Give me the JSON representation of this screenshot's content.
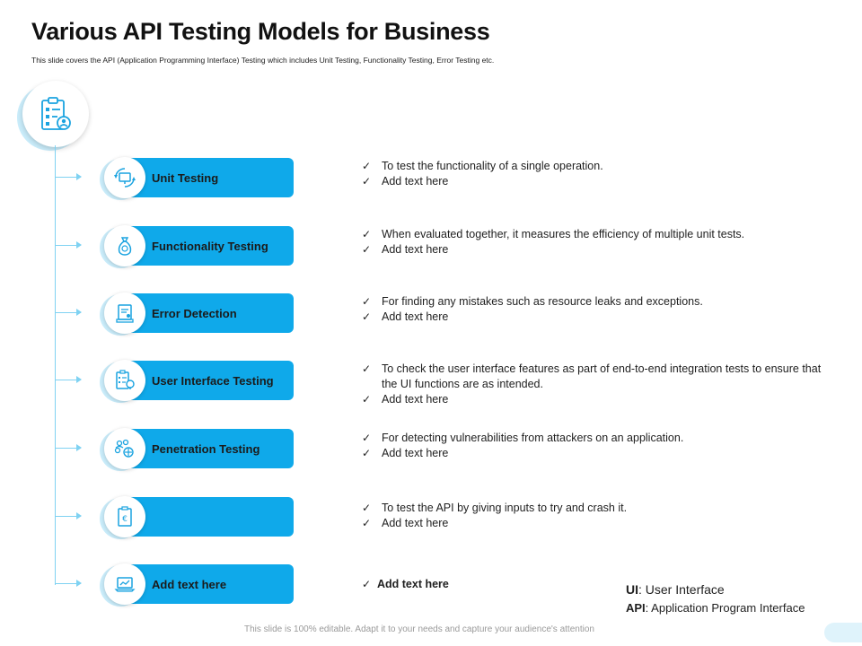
{
  "header": {
    "title": "Various API Testing Models for Business",
    "subtitle": "This slide covers the API (Application Programming Interface) Testing which includes Unit Testing, Functionality Testing, Error Testing etc."
  },
  "top_icon": "clipboard-user-icon",
  "rows": [
    {
      "label": "Unit Testing",
      "icon": "sync-monitor-icon",
      "bullets": [
        "To test the functionality of a single operation.",
        "Add text here"
      ]
    },
    {
      "label": "Functionality Testing",
      "icon": "money-bag-icon",
      "bullets": [
        "When evaluated together, it measures the efficiency of multiple unit tests.",
        "Add text here"
      ]
    },
    {
      "label": "Error Detection",
      "icon": "certificate-icon",
      "bullets": [
        "For finding any mistakes such as resource leaks and exceptions.",
        "Add text here"
      ]
    },
    {
      "label": "User Interface Testing",
      "icon": "clipboard-bulb-icon",
      "bullets": [
        "To check the user interface features as part of end-to-end integration tests to ensure that the UI functions are as intended.",
        "Add text here"
      ]
    },
    {
      "label": "Penetration Testing",
      "icon": "team-target-icon",
      "bullets": [
        "For detecting vulnerabilities from attackers on an application.",
        "Add text here"
      ]
    },
    {
      "label": "",
      "icon": "clipboard-euro-icon",
      "bullets": [
        "To test the API by giving inputs to try and crash it.",
        "Add text here"
      ]
    },
    {
      "label": "Add text here",
      "icon": "laptop-chart-icon",
      "bullets": [
        "Add text here"
      ]
    }
  ],
  "abbreviations": [
    {
      "term": "UI",
      "definition": ": User Interface"
    },
    {
      "term": "API",
      "definition": ": Application Program Interface"
    }
  ],
  "footer": "This slide is 100% editable. Adapt it to your needs and capture your audience's attention",
  "colors": {
    "accent": "#0fa9ea",
    "connector": "#7fd2f2",
    "icon_stroke": "#1aa3e0"
  }
}
